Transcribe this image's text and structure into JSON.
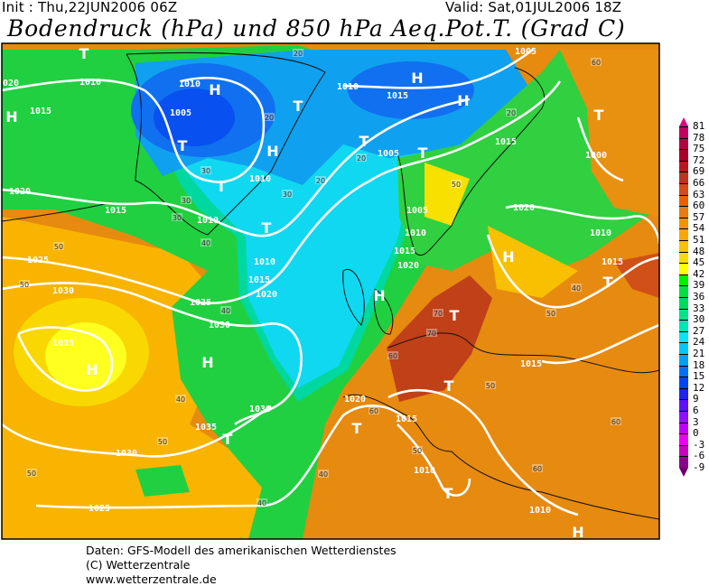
{
  "header": {
    "init": "Init : Thu,22JUN2006 06Z",
    "valid": "Valid: Sat,01JUL2006 18Z",
    "title": "Bodendruck (hPa) und 850 hPa Aeq.Pot.T. (Grad C)"
  },
  "legend": {
    "labels": [
      "81",
      "78",
      "75",
      "72",
      "69",
      "66",
      "63",
      "60",
      "57",
      "54",
      "51",
      "48",
      "45",
      "42",
      "39",
      "36",
      "33",
      "30",
      "27",
      "24",
      "21",
      "18",
      "15",
      "12",
      "9",
      "6",
      "3",
      "0",
      "-3",
      "-6",
      "-9"
    ],
    "colors": [
      "#e8007c",
      "#c4005c",
      "#b40040",
      "#a8002a",
      "#b01c20",
      "#c43020",
      "#d84a18",
      "#e06410",
      "#e47c10",
      "#f09400",
      "#f8a800",
      "#f8c000",
      "#f8dc00",
      "#ffff00",
      "#00f000",
      "#00e040",
      "#00d860",
      "#00e488",
      "#00e4b4",
      "#00e8ec",
      "#00c8f8",
      "#00a0f8",
      "#0070f8",
      "#0044f8",
      "#2020f8",
      "#6010f8",
      "#9010f8",
      "#c000f8",
      "#f000f0",
      "#cc00c0",
      "#8c008c",
      "#6c006c"
    ]
  },
  "map": {
    "pressure_labels": [
      "1010",
      "1010",
      "1005",
      "1015",
      "020",
      "1010",
      "1010",
      "1020",
      "1015",
      "1025",
      "1030",
      "1025",
      "1030",
      "1010",
      "1015",
      "1020",
      "1035",
      "1030",
      "1035",
      "1030",
      "1025",
      "1010",
      "1015",
      "1005",
      "1005",
      "1010",
      "1015",
      "1020",
      "1015",
      "1020",
      "1010",
      "1015",
      "1000",
      "1015",
      "1020",
      "1015",
      "1010",
      "1010",
      "1005"
    ],
    "centers": [
      "H",
      "H",
      "H",
      "H",
      "T",
      "T",
      "H",
      "T",
      "T",
      "T",
      "T",
      "H",
      "T",
      "T",
      "H",
      "T",
      "H",
      "H",
      "T",
      "T",
      "T",
      "T",
      "H",
      "T"
    ],
    "theta_labels": [
      "20",
      "20",
      "20",
      "20",
      "20",
      "30",
      "30",
      "30",
      "40",
      "40",
      "40",
      "40",
      "50",
      "50",
      "50",
      "50",
      "50",
      "60",
      "60",
      "60",
      "70",
      "70",
      "60",
      "50",
      "40",
      "30",
      "50",
      "60",
      "50",
      "40"
    ]
  },
  "footer": {
    "line1": "Daten: GFS-Modell des amerikanischen Wetterdienstes",
    "line2": "(C) Wetterzentrale",
    "line3": "www.wetterzentrale.de"
  }
}
